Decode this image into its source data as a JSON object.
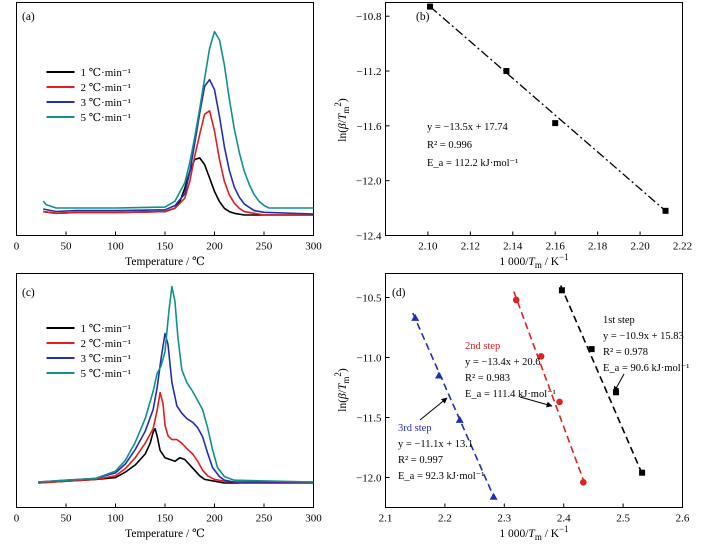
{
  "chart_data": [
    {
      "panel": "(a)",
      "type": "line",
      "xlabel": "Temperature / ℃",
      "xlim": [
        0,
        300
      ],
      "xticks": [
        "0",
        "50",
        "100",
        "150",
        "200",
        "250",
        "300"
      ],
      "legend": {
        "placement": "left",
        "entries": [
          "1 ℃·min⁻¹",
          "2 ℃·min⁻¹",
          "3 ℃·min⁻¹",
          "5 ℃·min⁻¹"
        ]
      },
      "series": [
        {
          "name": "1 ℃·min⁻¹",
          "color": "#000000",
          "x": [
            27,
            40,
            60,
            100,
            150,
            160,
            165,
            170,
            175,
            180,
            185,
            190,
            195,
            200,
            205,
            210,
            215,
            220,
            230,
            250,
            300
          ],
          "y": [
            0.02,
            0.01,
            0.015,
            0.015,
            0.02,
            0.04,
            0.08,
            0.16,
            0.26,
            0.33,
            0.34,
            0.3,
            0.22,
            0.14,
            0.08,
            0.04,
            0.02,
            0.01,
            0.0,
            0.0,
            0.0
          ]
        },
        {
          "name": "2 ℃·min⁻¹",
          "color": "#e02020",
          "x": [
            27,
            40,
            60,
            100,
            150,
            160,
            170,
            175,
            180,
            185,
            190,
            195,
            200,
            205,
            210,
            215,
            220,
            225,
            230,
            240,
            250,
            300
          ],
          "y": [
            0.02,
            0.01,
            0.015,
            0.015,
            0.02,
            0.04,
            0.1,
            0.2,
            0.35,
            0.48,
            0.6,
            0.62,
            0.5,
            0.33,
            0.2,
            0.12,
            0.07,
            0.04,
            0.02,
            0.01,
            0.0,
            0.0
          ]
        },
        {
          "name": "3 ℃·min⁻¹",
          "color": "#2030b0",
          "x": [
            27,
            40,
            60,
            100,
            150,
            160,
            170,
            175,
            180,
            185,
            190,
            195,
            200,
            205,
            210,
            215,
            220,
            225,
            230,
            240,
            250,
            300
          ],
          "y": [
            0.03,
            0.015,
            0.02,
            0.02,
            0.025,
            0.05,
            0.12,
            0.25,
            0.42,
            0.6,
            0.76,
            0.8,
            0.74,
            0.58,
            0.4,
            0.26,
            0.16,
            0.1,
            0.06,
            0.02,
            0.01,
            0.0
          ]
        },
        {
          "name": "5 ℃·min⁻¹",
          "color": "#10908c",
          "x": [
            27,
            30,
            40,
            60,
            100,
            150,
            160,
            170,
            175,
            180,
            185,
            190,
            195,
            200,
            205,
            210,
            215,
            220,
            225,
            230,
            235,
            240,
            245,
            250,
            255,
            260,
            270,
            300
          ],
          "y": [
            0.07,
            0.05,
            0.03,
            0.03,
            0.03,
            0.035,
            0.07,
            0.18,
            0.3,
            0.45,
            0.62,
            0.8,
            0.98,
            1.08,
            1.03,
            0.88,
            0.68,
            0.5,
            0.36,
            0.25,
            0.17,
            0.11,
            0.07,
            0.045,
            0.03,
            0.03,
            0.03,
            0.03
          ]
        }
      ]
    },
    {
      "panel": "(b)",
      "type": "scatter",
      "xlabel": "1 000/T_m / K⁻¹",
      "ylabel": "ln(β/T_m²)",
      "xlim": [
        2.08,
        2.22
      ],
      "ylim": [
        -12.4,
        -10.7
      ],
      "xticks": [
        "2.10",
        "2.12",
        "2.14",
        "2.16",
        "2.18",
        "2.20",
        "2.22"
      ],
      "yticks": [
        "-10.8",
        "-11.2",
        "-11.6",
        "-12.0",
        "-12.4"
      ],
      "points": {
        "x": [
          2.101,
          2.137,
          2.16,
          2.212
        ],
        "y": [
          -10.73,
          -11.2,
          -11.58,
          -12.22
        ]
      },
      "fit": {
        "x": [
          2.101,
          2.212
        ],
        "y": [
          -10.73,
          -12.22
        ]
      },
      "annotations": {
        "equation": "y = −13.5x + 17.74",
        "r2": "R² = 0.996",
        "ea": "E_a = 112.2 kJ·mol⁻¹"
      }
    },
    {
      "panel": "(c)",
      "type": "line",
      "xlabel": "Temperature / ℃",
      "xlim": [
        0,
        300
      ],
      "xticks": [
        "0",
        "50",
        "100",
        "150",
        "200",
        "250",
        "300"
      ],
      "legend": {
        "placement": "top-left",
        "entries": [
          "1 ℃·min⁻¹",
          "2 ℃·min⁻¹",
          "3 ℃·min⁻¹",
          "5 ℃·min⁻¹"
        ]
      },
      "series": [
        {
          "name": "1 ℃·min⁻¹",
          "color": "#000000",
          "x": [
            22,
            50,
            80,
            100,
            110,
            120,
            130,
            135,
            138,
            140,
            142,
            145,
            150,
            155,
            160,
            165,
            170,
            175,
            180,
            185,
            190,
            200,
            210,
            230,
            300
          ],
          "y": [
            0.0,
            0.01,
            0.02,
            0.03,
            0.06,
            0.1,
            0.16,
            0.22,
            0.28,
            0.3,
            0.26,
            0.18,
            0.14,
            0.13,
            0.12,
            0.14,
            0.13,
            0.1,
            0.07,
            0.04,
            0.02,
            0.01,
            0.0,
            0.0,
            0.0
          ]
        },
        {
          "name": "2 ℃·min⁻¹",
          "color": "#e02020",
          "x": [
            22,
            50,
            80,
            100,
            110,
            120,
            130,
            138,
            142,
            145,
            148,
            150,
            153,
            157,
            162,
            167,
            172,
            178,
            183,
            188,
            193,
            200,
            210,
            230,
            300
          ],
          "y": [
            0.0,
            0.01,
            0.02,
            0.04,
            0.08,
            0.14,
            0.22,
            0.3,
            0.4,
            0.5,
            0.44,
            0.32,
            0.26,
            0.24,
            0.24,
            0.22,
            0.19,
            0.16,
            0.12,
            0.07,
            0.04,
            0.02,
            0.01,
            0.0,
            0.0
          ]
        },
        {
          "name": "3 ℃·min⁻¹",
          "color": "#2030b0",
          "x": [
            22,
            50,
            80,
            100,
            110,
            120,
            130,
            138,
            142,
            146,
            150,
            153,
            157,
            162,
            167,
            172,
            178,
            183,
            188,
            193,
            198,
            205,
            210,
            220,
            300
          ],
          "y": [
            0.0,
            0.01,
            0.02,
            0.05,
            0.1,
            0.18,
            0.28,
            0.4,
            0.52,
            0.68,
            0.82,
            0.76,
            0.55,
            0.42,
            0.38,
            0.35,
            0.33,
            0.3,
            0.25,
            0.16,
            0.08,
            0.03,
            0.01,
            0.0,
            0.0
          ]
        },
        {
          "name": "5 ℃·min⁻¹",
          "color": "#10908c",
          "x": [
            22,
            50,
            80,
            100,
            110,
            120,
            130,
            138,
            142,
            146,
            150,
            154,
            157,
            160,
            163,
            167,
            172,
            178,
            183,
            188,
            193,
            198,
            203,
            210,
            220,
            300
          ],
          "y": [
            0.0,
            0.01,
            0.02,
            0.06,
            0.12,
            0.22,
            0.35,
            0.5,
            0.6,
            0.64,
            0.72,
            0.95,
            1.08,
            1.0,
            0.8,
            0.62,
            0.55,
            0.5,
            0.45,
            0.4,
            0.3,
            0.18,
            0.08,
            0.03,
            0.01,
            0.0
          ]
        }
      ]
    },
    {
      "panel": "(d)",
      "type": "scatter",
      "xlabel": "1 000/T_m / K⁻¹",
      "ylabel": "ln(β/T_m²)",
      "xlim": [
        2.1,
        2.6
      ],
      "ylim": [
        -12.25,
        -10.3
      ],
      "xticks": [
        "2.1",
        "2.2",
        "2.3",
        "2.4",
        "2.5",
        "2.6"
      ],
      "yticks": [
        "-10.5",
        "-11.0",
        "-11.5",
        "-12.0"
      ],
      "series": [
        {
          "name": "3rd step",
          "color": "#2030b0",
          "marker": "triangle",
          "dash": "7,4",
          "x": [
            2.15,
            2.19,
            2.225,
            2.282
          ],
          "y": [
            -10.67,
            -11.15,
            -11.52,
            -12.16
          ],
          "fit": {
            "x": [
              2.146,
              2.284
            ],
            "y": [
              -10.63,
              -12.18
            ]
          }
        },
        {
          "name": "2nd step",
          "color": "#e02020",
          "marker": "circle",
          "dash": "7,4",
          "x": [
            2.32,
            2.362,
            2.393,
            2.433
          ],
          "y": [
            -10.52,
            -10.99,
            -11.37,
            -12.04
          ],
          "fit": {
            "x": [
              2.316,
              2.436
            ],
            "y": [
              -10.45,
              -12.06
            ]
          }
        },
        {
          "name": "1st step",
          "color": "#000000",
          "marker": "square",
          "dash": "7,4",
          "x": [
            2.397,
            2.447,
            2.488,
            2.532
          ],
          "y": [
            -10.44,
            -10.93,
            -11.29,
            -11.96
          ],
          "fit": {
            "x": [
              2.395,
              2.533
            ],
            "y": [
              -10.4,
              -11.98
            ]
          }
        }
      ],
      "annotations": {
        "first": {
          "title": "1st step",
          "equation": "y = −10.9x + 15.83",
          "r2": "R² = 0.978",
          "ea": "E_a = 90.6 kJ·mol⁻¹"
        },
        "second": {
          "title": "2nd step",
          "equation": "y = −13.4x + 20.6",
          "r2": "R² = 0.983",
          "ea": "E_a = 111.4 kJ·mol⁻¹"
        },
        "third": {
          "title": "3rd step",
          "equation": "y = −11.1x + 13.1",
          "r2": "R² = 0.997",
          "ea": "E_a = 92.3 kJ·mol⁻¹"
        }
      }
    }
  ]
}
